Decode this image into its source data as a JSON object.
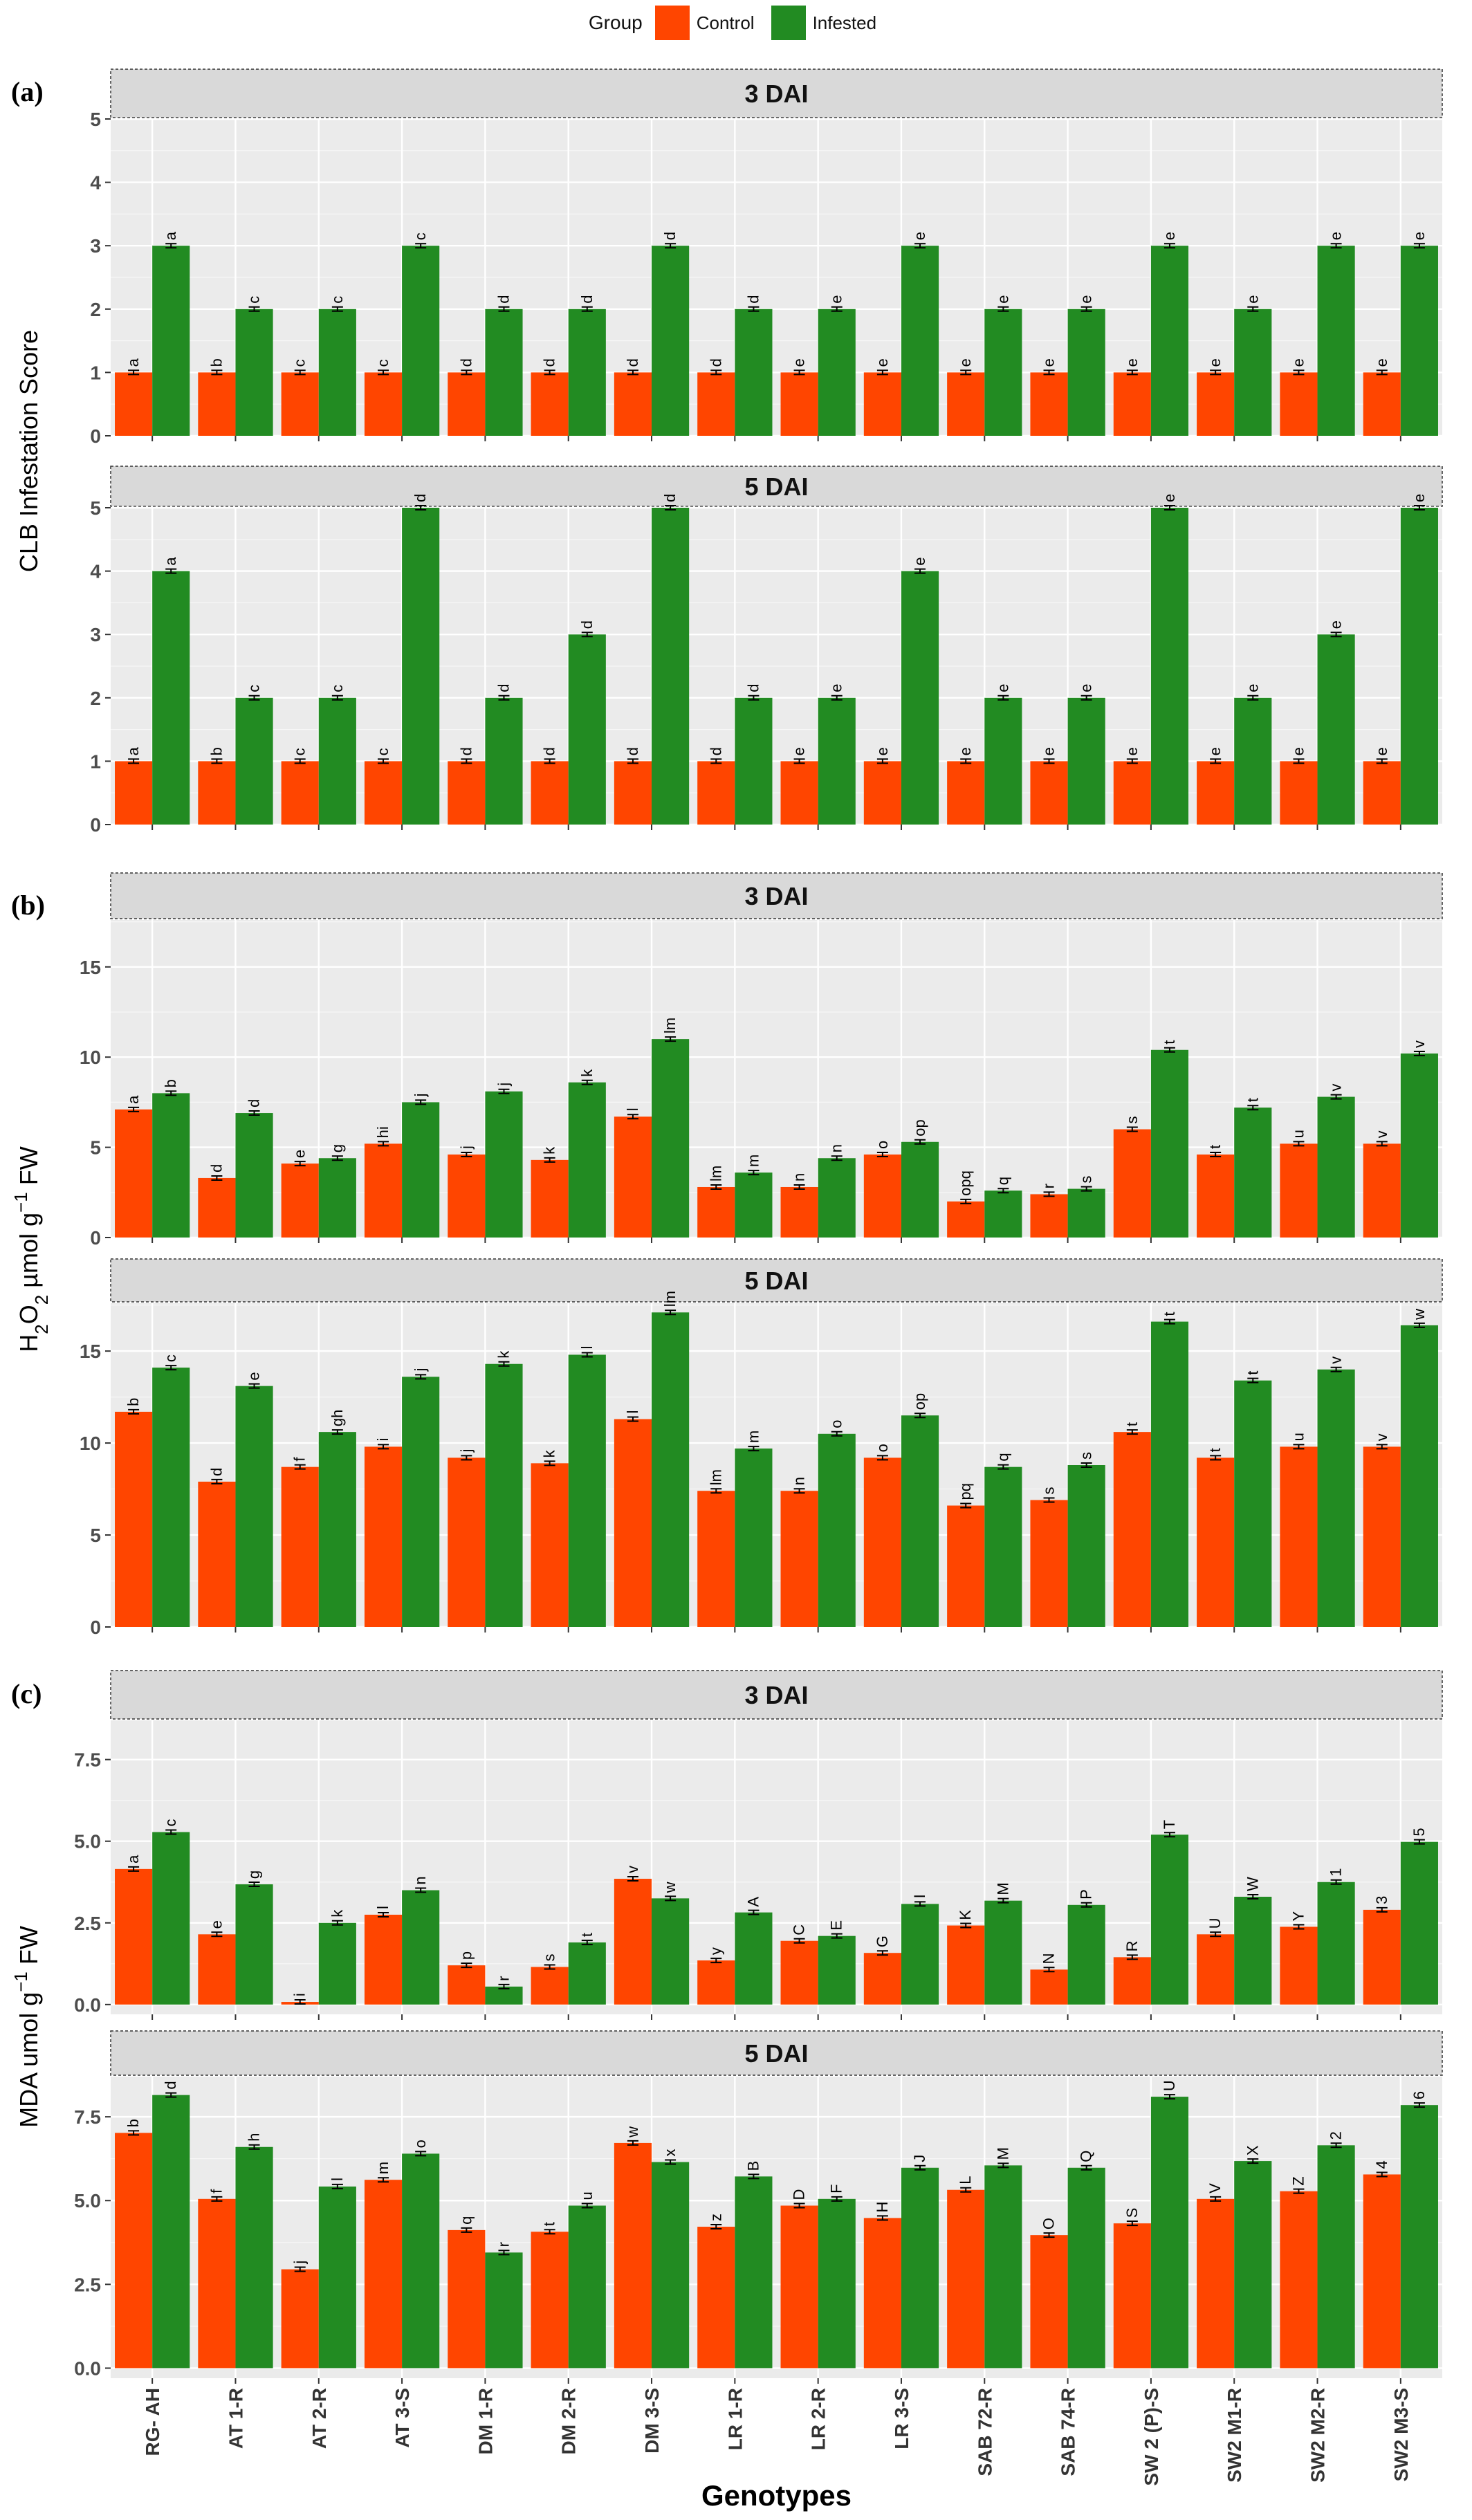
{
  "legend": {
    "title": "Group",
    "items": [
      {
        "label": "Control",
        "color": "#FF4500"
      },
      {
        "label": "Infested",
        "color": "#228B22"
      }
    ]
  },
  "xaxis_title": "Genotypes",
  "colors": {
    "control": "#FF4500",
    "infested": "#228B22",
    "panel_bg": "#EBEBEB",
    "strip_bg": "#D9D9D9",
    "grid": "#FFFFFF"
  },
  "chart_data": [
    {
      "label": "(a)",
      "type": "bar",
      "ylabel": "CLB Infestation Score",
      "categories": [
        "RG- AH",
        "AT 1-R",
        "AT 2-R",
        "AT 3-S",
        "DM 1-R",
        "DM 2-R",
        "DM 3-S",
        "LR 1-R",
        "LR 2-R",
        "LR 3-S",
        "SAB 72-R",
        "SAB 74-R",
        "SW 2 (P)-S",
        "SW2 M1-R",
        "SW2 M2-R",
        "SW2 M3-S"
      ],
      "facets": [
        {
          "strip": "3 DAI",
          "ylim": [
            0,
            5
          ],
          "yticks": [
            0,
            1,
            2,
            3,
            4,
            5
          ],
          "series": [
            {
              "name": "Control",
              "values": [
                1,
                1,
                1,
                1,
                1,
                1,
                1,
                1,
                1,
                1,
                1,
                1,
                1,
                1,
                1,
                1
              ],
              "letters": [
                "a",
                "b",
                "c",
                "c",
                "d",
                "d",
                "d",
                "d",
                "e",
                "e",
                "e",
                "e",
                "e",
                "e",
                "e",
                "e"
              ]
            },
            {
              "name": "Infested",
              "values": [
                3,
                2,
                2,
                3,
                2,
                2,
                3,
                2,
                2,
                3,
                2,
                2,
                3,
                2,
                3,
                3
              ],
              "letters": [
                "a",
                "c",
                "c",
                "c",
                "d",
                "d",
                "d",
                "d",
                "e",
                "e",
                "e",
                "e",
                "e",
                "e",
                "e",
                "e"
              ]
            }
          ]
        },
        {
          "strip": "5 DAI",
          "ylim": [
            0,
            5
          ],
          "yticks": [
            0,
            1,
            2,
            3,
            4,
            5
          ],
          "series": [
            {
              "name": "Control",
              "values": [
                1,
                1,
                1,
                1,
                1,
                1,
                1,
                1,
                1,
                1,
                1,
                1,
                1,
                1,
                1,
                1
              ],
              "letters": [
                "a",
                "b",
                "c",
                "c",
                "d",
                "d",
                "d",
                "d",
                "e",
                "e",
                "e",
                "e",
                "e",
                "e",
                "e",
                "e"
              ]
            },
            {
              "name": "Infested",
              "values": [
                4,
                2,
                2,
                5,
                2,
                3,
                5,
                2,
                2,
                4,
                2,
                2,
                5,
                2,
                3,
                5
              ],
              "letters": [
                "a",
                "c",
                "c",
                "d",
                "d",
                "d",
                "d",
                "d",
                "e",
                "e",
                "e",
                "e",
                "e",
                "e",
                "e",
                "e"
              ]
            }
          ]
        }
      ]
    },
    {
      "label": "(b)",
      "type": "bar",
      "ylabel": "H2O2 µmol g-1 FW",
      "ylabel_parts": {
        "a": "H",
        "b": "2",
        "c": "O",
        "d": "2",
        "e": " µmol g",
        "f": "−1",
        "g": " FW"
      },
      "categories": [
        "RG- AH",
        "AT 1-R",
        "AT 2-R",
        "AT 3-S",
        "DM 1-R",
        "DM 2-R",
        "DM 3-S",
        "LR 1-R",
        "LR 2-R",
        "LR 3-S",
        "SAB 72-R",
        "SAB 74-R",
        "SW 2 (P)-S",
        "SW2 M1-R",
        "SW2 M2-R",
        "SW2 M3-S"
      ],
      "facets": [
        {
          "strip": "3 DAI",
          "ylim": [
            0,
            17.6
          ],
          "yticks": [
            0,
            5,
            10,
            15
          ],
          "series": [
            {
              "name": "Control",
              "values": [
                7.1,
                3.3,
                4.1,
                5.2,
                4.6,
                4.3,
                6.7,
                2.8,
                2.8,
                4.6,
                2.0,
                2.4,
                6.0,
                4.6,
                5.2,
                5.2
              ],
              "letters": [
                "a",
                "d",
                "e",
                "hi",
                "j",
                "k",
                "l",
                "lm",
                "n",
                "o",
                "opq",
                "r",
                "s",
                "t",
                "u",
                "v"
              ]
            },
            {
              "name": "Infested",
              "values": [
                8.0,
                6.9,
                4.4,
                7.5,
                8.1,
                8.6,
                11.0,
                3.6,
                4.4,
                5.3,
                2.6,
                2.7,
                10.4,
                7.2,
                7.8,
                10.2
              ],
              "letters": [
                "b",
                "d",
                "g",
                "j",
                "j",
                "k",
                "lm",
                "m",
                "n",
                "op",
                "q",
                "s",
                "t",
                "t",
                "v",
                "v"
              ]
            }
          ]
        },
        {
          "strip": "5 DAI",
          "ylim": [
            0,
            17.6
          ],
          "yticks": [
            0,
            5,
            10,
            15
          ],
          "series": [
            {
              "name": "Control",
              "values": [
                11.7,
                7.9,
                8.7,
                9.8,
                9.2,
                8.9,
                11.3,
                7.4,
                7.4,
                9.2,
                6.6,
                6.9,
                10.6,
                9.2,
                9.8,
                9.8
              ],
              "letters": [
                "b",
                "d",
                "f",
                "i",
                "j",
                "k",
                "l",
                "lm",
                "n",
                "o",
                "pq",
                "s",
                "t",
                "t",
                "u",
                "v"
              ]
            },
            {
              "name": "Infested",
              "values": [
                14.1,
                13.1,
                10.6,
                13.6,
                14.3,
                14.8,
                17.1,
                9.7,
                10.5,
                11.5,
                8.7,
                8.8,
                16.6,
                13.4,
                14.0,
                16.4
              ],
              "letters": [
                "c",
                "e",
                "gh",
                "j",
                "k",
                "l",
                "lm",
                "m",
                "o",
                "op",
                "q",
                "s",
                "t",
                "t",
                "v",
                "w"
              ]
            }
          ]
        }
      ]
    },
    {
      "label": "(c)",
      "type": "bar",
      "ylabel": "MDA umol g-1 FW",
      "ylabel_parts": {
        "a": "MDA umol g",
        "b": "−1",
        "c": " FW"
      },
      "categories": [
        "RG- AH",
        "AT 1-R",
        "AT 2-R",
        "AT 3-S",
        "DM 1-R",
        "DM 2-R",
        "DM 3-S",
        "LR 1-R",
        "LR 2-R",
        "LR 3-S",
        "SAB 72-R",
        "SAB 74-R",
        "SW 2 (P)-S",
        "SW2 M1-R",
        "SW2 M2-R",
        "SW2 M3-S"
      ],
      "facets": [
        {
          "strip": "3 DAI",
          "ylim": [
            -0.3,
            8.7
          ],
          "yticks": [
            0.0,
            2.5,
            5.0,
            7.5
          ],
          "series": [
            {
              "name": "Control",
              "values": [
                4.15,
                2.15,
                0.08,
                2.75,
                1.2,
                1.15,
                3.85,
                1.35,
                1.95,
                1.58,
                2.42,
                1.07,
                1.45,
                2.15,
                2.38,
                2.9
              ],
              "letters": [
                "a",
                "e",
                "i",
                "l",
                "p",
                "s",
                "v",
                "y",
                "C",
                "G",
                "K",
                "N",
                "R",
                "U",
                "Y",
                "3"
              ]
            },
            {
              "name": "Infested",
              "values": [
                5.28,
                3.68,
                2.5,
                3.5,
                0.55,
                1.9,
                3.25,
                2.82,
                2.1,
                3.08,
                3.18,
                3.05,
                5.2,
                3.3,
                3.75,
                4.98
              ],
              "letters": [
                "c",
                "g",
                "k",
                "n",
                "r",
                "t",
                "w",
                "A",
                "E",
                "I",
                "M",
                "P",
                "T",
                "W",
                "1",
                "5"
              ]
            }
          ]
        },
        {
          "strip": "5 DAI",
          "ylim": [
            -0.3,
            8.7
          ],
          "yticks": [
            0.0,
            2.5,
            5.0,
            7.5
          ],
          "series": [
            {
              "name": "Control",
              "values": [
                7.02,
                5.05,
                2.95,
                5.62,
                4.12,
                4.07,
                6.72,
                4.22,
                4.85,
                4.48,
                5.32,
                3.97,
                4.32,
                5.05,
                5.28,
                5.78
              ],
              "letters": [
                "b",
                "f",
                "j",
                "m",
                "q",
                "t",
                "w",
                "z",
                "D",
                "H",
                "L",
                "O",
                "S",
                "V",
                "Z",
                "4"
              ]
            },
            {
              "name": "Infested",
              "values": [
                8.15,
                6.6,
                5.42,
                6.4,
                3.45,
                4.85,
                6.15,
                5.72,
                5.05,
                5.98,
                6.05,
                5.98,
                8.1,
                6.18,
                6.65,
                7.85
              ],
              "letters": [
                "d",
                "h",
                "l",
                "o",
                "r",
                "u",
                "x",
                "B",
                "F",
                "J",
                "M",
                "Q",
                "U",
                "X",
                "2",
                "6"
              ]
            }
          ]
        }
      ]
    }
  ]
}
